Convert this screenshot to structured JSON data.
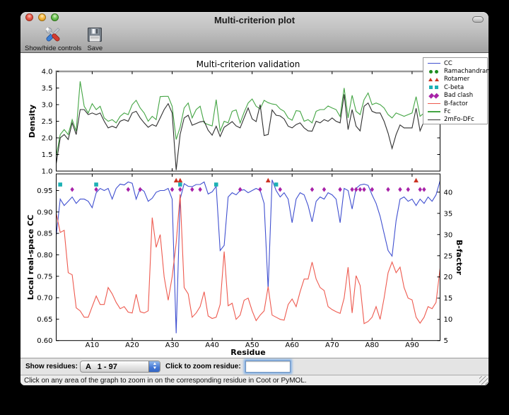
{
  "titlebar": {
    "title": "Multi-criterion plot"
  },
  "toolbar": {
    "buttons": [
      {
        "label": "Show/hide controls"
      },
      {
        "label": "Save"
      }
    ]
  },
  "controls": {
    "show_residues_label": "Show residues:",
    "dropdown_value": "A   1 - 97",
    "zoom_label": "Click to zoom residue:",
    "zoom_value": ""
  },
  "status": "Click on any area of the graph to zoom in on the corresponding residue in Coot or PyMOL.",
  "chart_data": {
    "type": "line",
    "x_range": [
      1,
      97
    ],
    "xticks": [
      10,
      20,
      30,
      40,
      50,
      60,
      70,
      80,
      90
    ],
    "xtick_labels": [
      "A10",
      "A20",
      "A30",
      "A40",
      "A50",
      "A60",
      "A70",
      "A80",
      "A90"
    ],
    "legend": {
      "position": "top-right",
      "items": [
        {
          "label": "CC",
          "type": "line",
          "color": "#4050d0"
        },
        {
          "label": "Ramachandran",
          "type": "circle",
          "color": "#1e8c1e"
        },
        {
          "label": "Rotamer",
          "type": "triangle",
          "color": "#cc3322"
        },
        {
          "label": "C-beta",
          "type": "square",
          "color": "#1cb0b4"
        },
        {
          "label": "Bad clash",
          "type": "diamond",
          "color": "#a822a8"
        },
        {
          "label": "B-factor",
          "type": "line",
          "color": "#ee5a4f"
        },
        {
          "label": "Fc",
          "type": "line",
          "color": "#44a544"
        },
        {
          "label": "2mFo-DFc",
          "type": "line",
          "color": "#2f2f2f"
        }
      ]
    },
    "subplots": [
      {
        "title": "Multi-criterion validation",
        "ylabel": "Density",
        "ylim": [
          1.0,
          4.0
        ],
        "ytick_vals": [
          1.0,
          1.5,
          2.0,
          2.5,
          3.0,
          3.5,
          4.0
        ],
        "ytick_labels": [
          "1.0",
          "1.5",
          "2.0",
          "2.5",
          "3.0",
          "3.5",
          "4.0"
        ],
        "series": [
          {
            "name": "Fc",
            "color": "#44a544",
            "values": [
              1.45,
              2.1,
              2.25,
              2.1,
              2.55,
              2.2,
              3.7,
              2.95,
              2.75,
              3.03,
              2.85,
              2.95,
              2.6,
              2.5,
              2.55,
              2.45,
              2.65,
              2.75,
              2.7,
              3.0,
              3.13,
              2.9,
              2.75,
              2.5,
              2.65,
              2.55,
              3.24,
              3.25,
              3.25,
              2.95,
              1.95,
              2.32,
              2.9,
              3.05,
              2.6,
              2.85,
              2.95,
              2.45,
              2.4,
              2.36,
              3.15,
              2.2,
              2.5,
              2.45,
              2.8,
              2.84,
              2.45,
              2.77,
              3.05,
              3.17,
              2.95,
              2.87,
              3.13,
              3.06,
              3.02,
              3.0,
              2.87,
              2.8,
              2.6,
              2.53,
              2.82,
              2.8,
              2.5,
              2.55,
              2.45,
              2.8,
              2.85,
              2.85,
              2.96,
              2.9,
              2.85,
              2.64,
              3.5,
              2.6,
              3.28,
              2.8,
              2.7,
              3.15,
              3.35,
              3.0,
              3.05,
              3.0,
              2.9,
              2.7,
              2.6,
              2.75,
              2.7,
              2.65,
              2.7,
              2.75,
              3.24,
              2.65,
              2.75,
              3.55,
              2.95,
              2.85,
              2.9
            ]
          },
          {
            "name": "2mFo-DFc",
            "color": "#2f2f2f",
            "values": [
              1.22,
              2.0,
              2.1,
              1.95,
              2.45,
              2.1,
              2.85,
              2.85,
              2.7,
              2.75,
              2.7,
              2.75,
              2.5,
              2.3,
              2.35,
              2.3,
              2.5,
              2.55,
              2.5,
              2.75,
              2.8,
              2.6,
              2.45,
              2.32,
              2.4,
              2.35,
              2.6,
              2.85,
              3.03,
              2.75,
              1.03,
              2.1,
              2.6,
              2.68,
              2.38,
              2.43,
              2.48,
              2.5,
              2.23,
              2.08,
              2.35,
              2.04,
              2.32,
              2.4,
              2.49,
              2.36,
              2.3,
              2.6,
              2.9,
              2.57,
              2.49,
              3.0,
              2.07,
              2.1,
              2.84,
              2.68,
              2.66,
              2.57,
              2.35,
              2.3,
              2.4,
              2.45,
              2.3,
              2.21,
              2.2,
              2.5,
              2.45,
              2.55,
              2.5,
              2.6,
              2.5,
              2.45,
              3.31,
              2.25,
              2.85,
              2.35,
              2.21,
              2.95,
              3.05,
              2.8,
              2.75,
              2.75,
              2.5,
              2.14,
              1.68,
              2.1,
              2.39,
              2.3,
              2.3,
              2.3,
              2.89,
              2.21,
              2.5,
              3.3,
              2.7,
              2.55,
              2.6
            ]
          }
        ]
      },
      {
        "ylabel": "Local real-space CC",
        "ylabel_right": "B-factor",
        "xlabel": "Residue",
        "ylim": [
          0.6,
          0.9888
        ],
        "ylim_right": [
          5,
          44.3
        ],
        "ytick_vals": [
          0.6,
          0.65,
          0.7,
          0.75,
          0.8,
          0.85,
          0.9,
          0.95
        ],
        "ytick_labels": [
          "0.60",
          "0.65",
          "0.70",
          "0.75",
          "0.80",
          "0.85",
          "0.90",
          "0.95"
        ],
        "ytick_vals_right": [
          5,
          10,
          15,
          20,
          25,
          30,
          35,
          40
        ],
        "ytick_labels_right": [
          "5",
          "10",
          "15",
          "20",
          "25",
          "30",
          "35",
          "40"
        ],
        "series": [
          {
            "name": "CC",
            "axis": "left",
            "color": "#4050d0",
            "values": [
              0.845,
              0.93,
              0.915,
              0.925,
              0.935,
              0.92,
              0.93,
              0.93,
              0.925,
              0.91,
              0.945,
              0.955,
              0.95,
              0.955,
              0.93,
              0.955,
              0.965,
              0.963,
              0.97,
              0.967,
              0.93,
              0.955,
              0.948,
              0.925,
              0.932,
              0.946,
              0.95,
              0.95,
              0.955,
              0.93,
              0.617,
              0.93,
              0.966,
              0.96,
              0.959,
              0.964,
              0.964,
              0.97,
              0.942,
              0.947,
              0.96,
              0.81,
              0.822,
              0.935,
              0.945,
              0.94,
              0.95,
              0.952,
              0.945,
              0.95,
              0.955,
              0.95,
              0.92,
              0.72,
              0.975,
              0.95,
              0.935,
              0.945,
              0.93,
              0.875,
              0.93,
              0.945,
              0.94,
              0.915,
              0.877,
              0.925,
              0.935,
              0.93,
              0.945,
              0.94,
              0.93,
              0.875,
              0.955,
              0.95,
              0.907,
              0.955,
              0.963,
              0.965,
              0.962,
              0.94,
              0.92,
              0.89,
              0.85,
              0.81,
              0.797,
              0.88,
              0.93,
              0.935,
              0.925,
              0.93,
              0.915,
              0.93,
              0.92,
              0.935,
              0.925,
              0.94,
              0.973
            ]
          },
          {
            "name": "B-factor",
            "axis": "right",
            "color": "#ee5a4f",
            "values": [
              35,
              30.5,
              31,
              21,
              20.5,
              12.7,
              12,
              10.5,
              10.5,
              13,
              15.5,
              13.5,
              13.5,
              17.5,
              16,
              14,
              12.5,
              13,
              11.7,
              11.5,
              15.9,
              11.8,
              11.5,
              12,
              34,
              27,
              30,
              20,
              14.5,
              20,
              28,
              39.5,
              17.5,
              16,
              10.5,
              11.5,
              13,
              16.5,
              10.8,
              10.2,
              10.5,
              13.5,
              26,
              13.2,
              13.8,
              10,
              11,
              14.5,
              15,
              12,
              9.7,
              11,
              12,
              17.7,
              11,
              10.5,
              10,
              9.8,
              13.5,
              14.8,
              13,
              16.5,
              19.5,
              19.5,
              23.5,
              19.5,
              17.5,
              16.8,
              13,
              12.3,
              11.8,
              11.4,
              15,
              22.3,
              11.5,
              20.3,
              18,
              9,
              9.5,
              10.5,
              13,
              10,
              15,
              21,
              23.5,
              21,
              22.3,
              17.5,
              15,
              14.6,
              10.5,
              9.1,
              10.5,
              13,
              12.5,
              14,
              22
            ]
          }
        ],
        "markers": [
          {
            "name": "Rotamer",
            "shape": "triangle",
            "color": "#cc3322",
            "residues": [
              31,
              32,
              54,
              91
            ]
          },
          {
            "name": "C-beta",
            "shape": "square",
            "color": "#1cb0b4",
            "residues": [
              2,
              11,
              32,
              41,
              56
            ]
          },
          {
            "name": "Bad clash",
            "shape": "diamond",
            "color": "#a822a8",
            "residues": [
              5,
              11,
              19,
              22,
              30,
              32,
              35,
              37,
              47,
              52,
              57,
              65,
              68,
              72,
              75,
              76,
              77,
              78,
              80,
              84,
              87,
              89,
              92,
              93
            ]
          }
        ]
      }
    ]
  }
}
